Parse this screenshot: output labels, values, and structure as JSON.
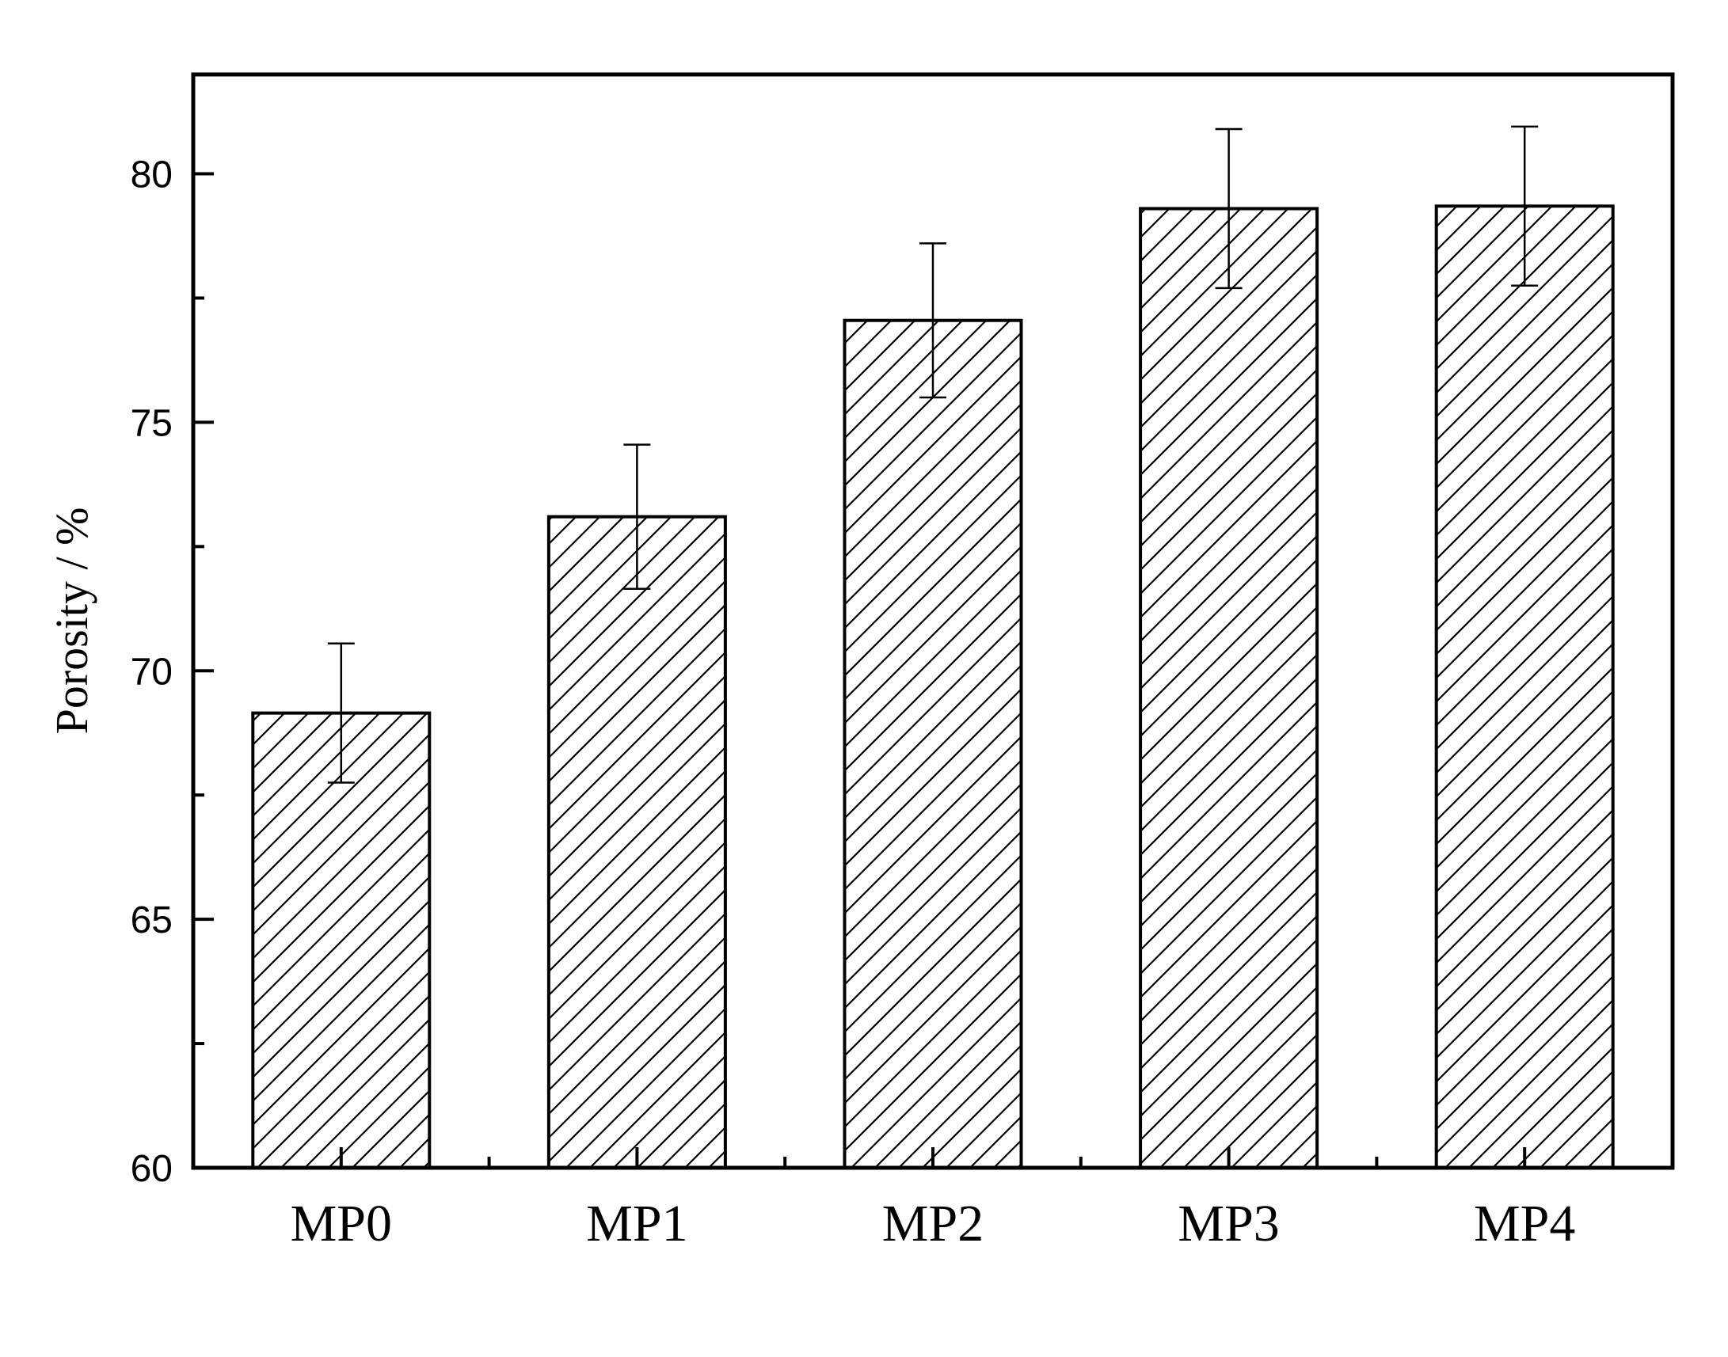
{
  "chart_data": {
    "type": "bar",
    "title": "",
    "xlabel": "",
    "ylabel": "Porosity / %",
    "categories": [
      "MP0",
      "MP1",
      "MP2",
      "MP3",
      "MP4"
    ],
    "values": [
      69.15,
      73.1,
      77.05,
      79.3,
      79.35
    ],
    "error": [
      1.4,
      1.45,
      1.55,
      1.6,
      1.6
    ],
    "ylim": [
      60,
      82
    ],
    "yticks": [
      60,
      65,
      70,
      75,
      80
    ],
    "grid": false,
    "legend": "none",
    "bar_fill": "hatched",
    "colors": {
      "bar_edge": "#000000",
      "hatch": "#000000",
      "bar_fill": "#ffffff",
      "axes": "#000000"
    }
  }
}
